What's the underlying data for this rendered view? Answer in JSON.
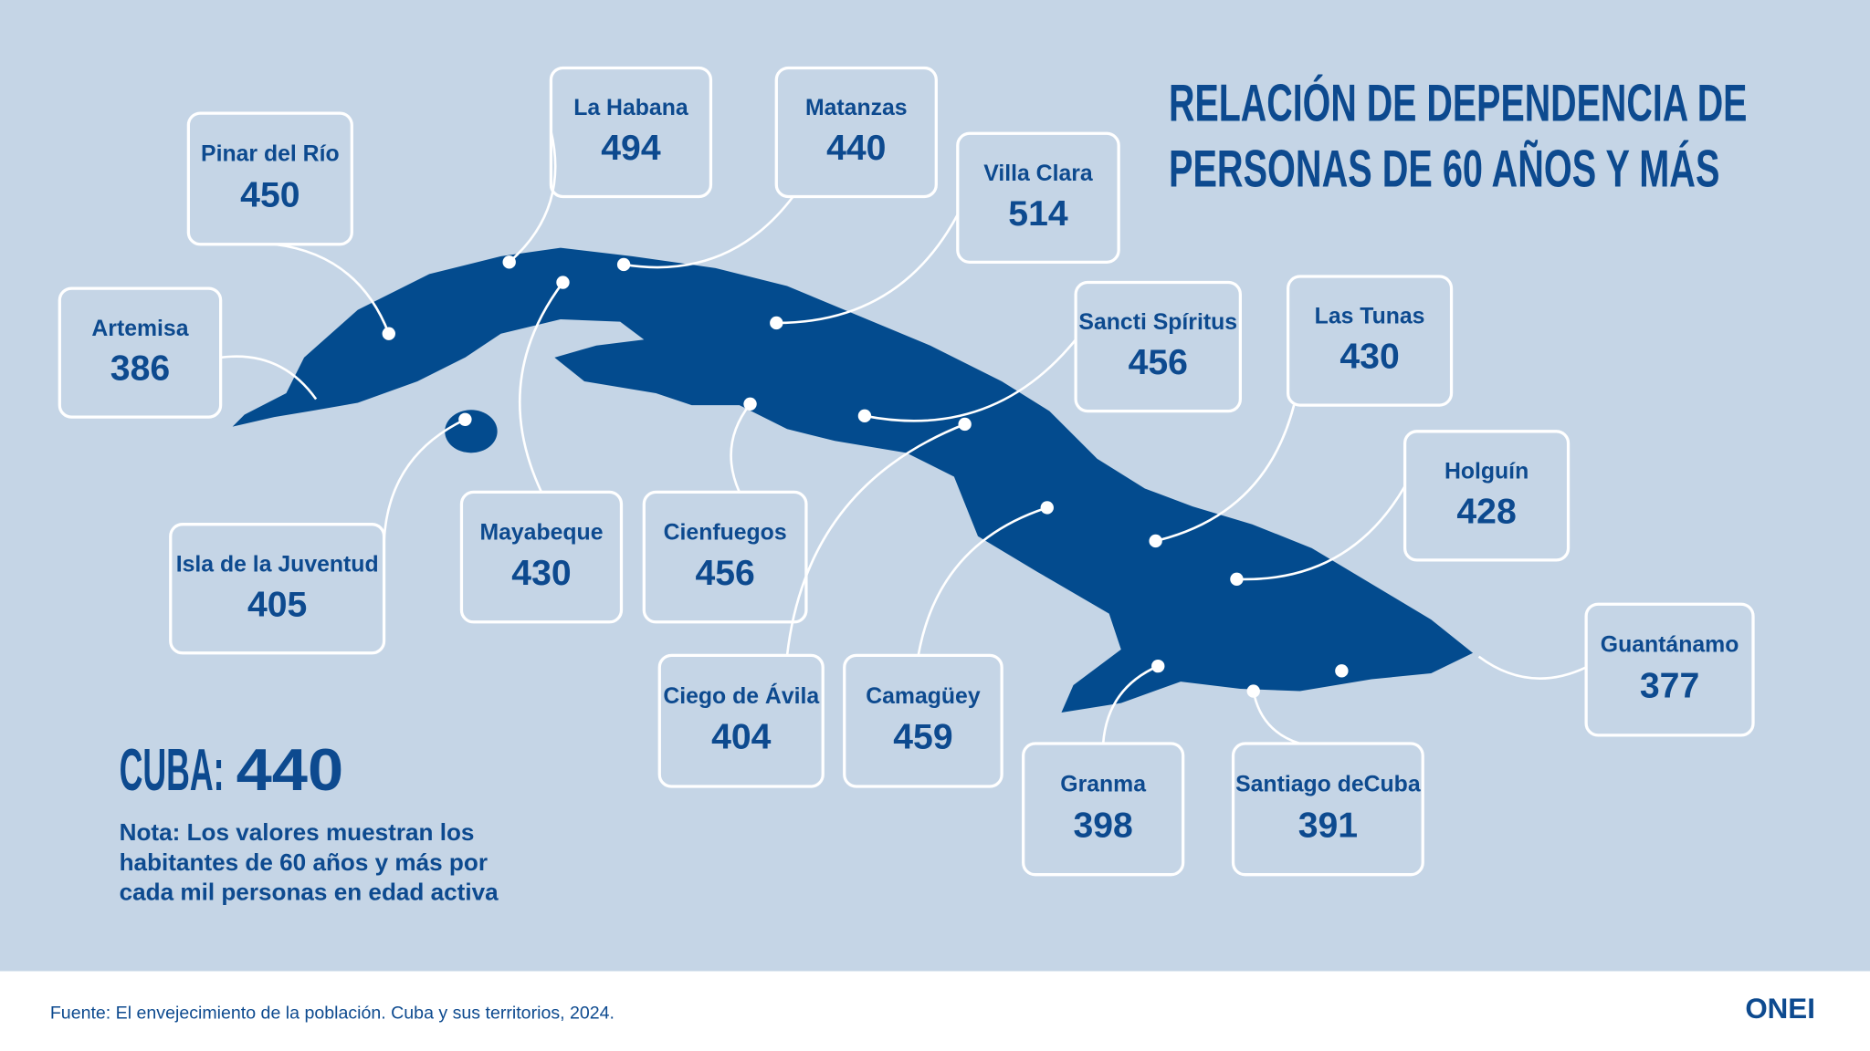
{
  "title": [
    "RELACIÓN DE DEPENDENCIA DE",
    "PERSONAS DE 60 AÑOS Y MÁS"
  ],
  "provinces": [
    {
      "name": "Pinar del Río",
      "value": 450
    },
    {
      "name": "Artemisa",
      "value": 386
    },
    {
      "name": "La Habana",
      "value": 494
    },
    {
      "name": "Mayabeque",
      "value": 430
    },
    {
      "name": "Matanzas",
      "value": 440
    },
    {
      "name": "Villa Clara",
      "value": 514
    },
    {
      "name": "Cienfuegos",
      "value": 456
    },
    {
      "name": "Sancti Spíritus",
      "value": 456
    },
    {
      "name": "Ciego de Ávila",
      "value": 404
    },
    {
      "name": "Camagüey",
      "value": 459
    },
    {
      "name": "Las Tunas",
      "value": 430
    },
    {
      "name": "Holguín",
      "value": 428
    },
    {
      "name": "Granma",
      "value": 398
    },
    {
      "name": "Santiago deCuba",
      "value": 391
    },
    {
      "name": "Guantánamo",
      "value": 377
    },
    {
      "name": "Isla de la Juventud",
      "value": 405
    }
  ],
  "total": {
    "label": "CUBA:",
    "value": 440
  },
  "note": [
    "Nota: Los valores muestran los",
    "habitantes de 60 años y más por",
    "cada mil personas en edad activa"
  ],
  "source": "Fuente: El envejecimiento de la población. Cuba y sus territorios, 2024.",
  "logo": "ONEI"
}
